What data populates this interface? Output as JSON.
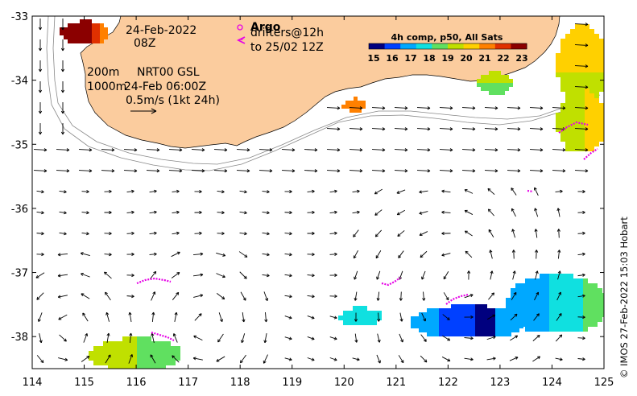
{
  "map": {
    "lon_range": [
      114,
      125
    ],
    "lat_range": [
      -38.5,
      -33
    ],
    "x_ticks": [
      "114",
      "115",
      "116",
      "117",
      "118",
      "119",
      "120",
      "121",
      "122",
      "123",
      "124",
      "125"
    ],
    "y_ticks": [
      "-33",
      "-34",
      "-35",
      "-36",
      "-37",
      "-38"
    ],
    "colors": {
      "land": "#fbcc9e",
      "ocean": "#ffffff",
      "argo": "#e600e6",
      "arrow": "#000000",
      "contour": "#888888"
    }
  },
  "annotations": {
    "date": "24-Feb-2022",
    "time": "08Z",
    "contours_a": "200m",
    "contours_b": "1000m",
    "currents_a": "NRT00 GSL",
    "currents_b": "24-Feb 06:00Z",
    "scale_label": "0.5m/s (1kt 24h)"
  },
  "argo_legend": {
    "argo_label": "Argo",
    "drifters_label": "drifters@12h",
    "drifters_to": "to 25/02 12Z"
  },
  "colorbar": {
    "title": "4h comp, p50, All Sats",
    "ticks": [
      "15",
      "16",
      "17",
      "18",
      "19",
      "20",
      "21",
      "22",
      "23"
    ],
    "colors": [
      "#00007f",
      "#0040ff",
      "#00a8ff",
      "#10e0e0",
      "#60e060",
      "#c0e000",
      "#ffd000",
      "#ff8000",
      "#e03000",
      "#8b0000"
    ]
  },
  "credit": "© IMOS 27-Feb-2022 15:03 Hobart"
}
